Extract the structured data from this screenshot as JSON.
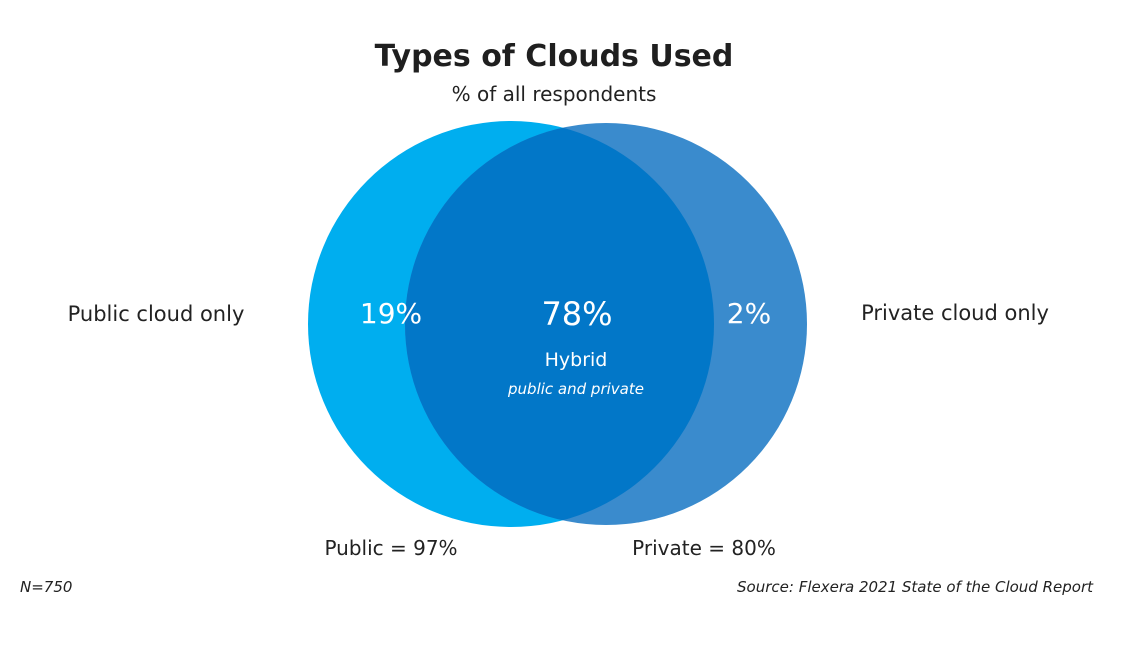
{
  "chart_data": {
    "type": "venn",
    "title": "Types of Clouds Used",
    "subtitle": "% of all respondents",
    "sets": [
      {
        "name": "Public",
        "color": "#00AEEF",
        "only_label": "Public cloud only",
        "only_value": "19%",
        "total_label": "Public = 97%",
        "total": 97
      },
      {
        "name": "Private",
        "color": "#3A8BCD",
        "only_label": "Private cloud only",
        "only_value": "2%",
        "total_label": "Private = 80%",
        "total": 80
      }
    ],
    "intersection": {
      "value": "78%",
      "label": "Hybrid",
      "sublabel": "public and private",
      "color": "#0277C8"
    },
    "values": {
      "public_only": 19,
      "hybrid": 78,
      "private_only": 2
    }
  },
  "footer": {
    "n": "N=750",
    "source": "Source: Flexera 2021 State of the Cloud Report"
  }
}
